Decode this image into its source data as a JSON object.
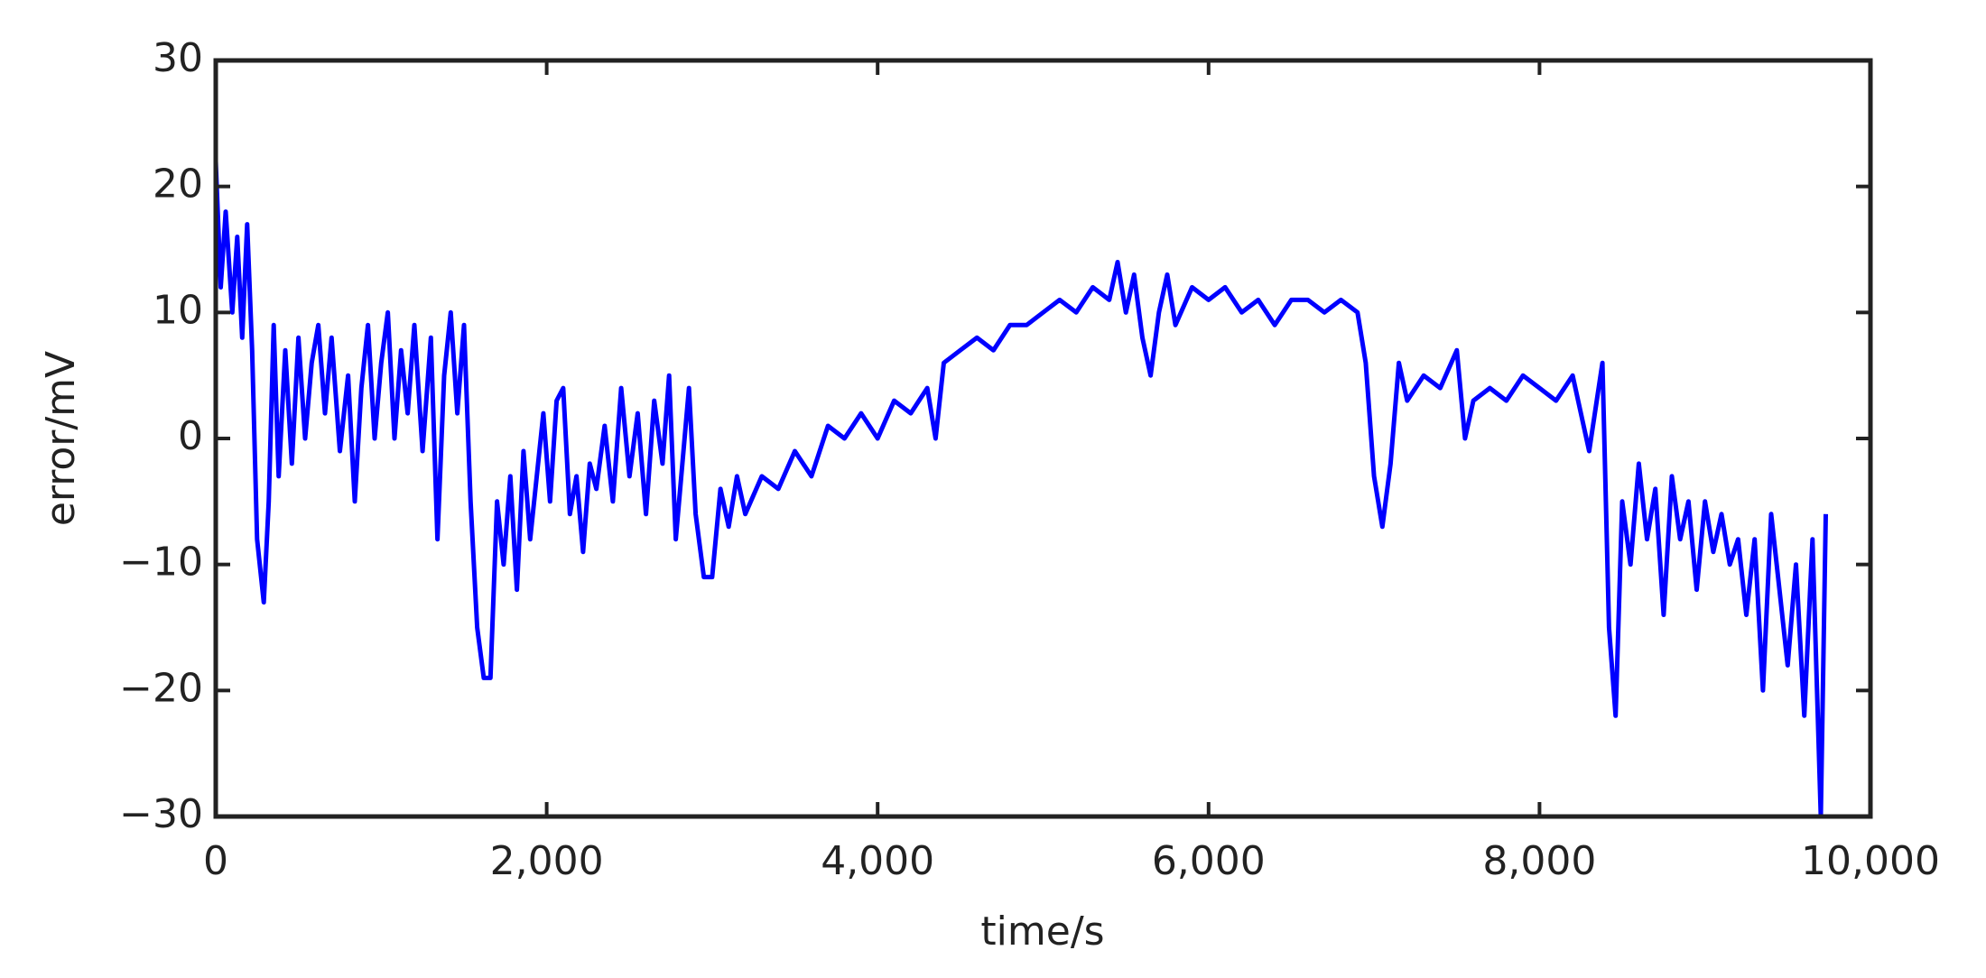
{
  "chart_data": {
    "type": "line",
    "xlabel": "time/s",
    "ylabel": "error/mV",
    "color": "#0000ff",
    "xlim": [
      0,
      10000
    ],
    "xticks": [
      0,
      {
        "value": 2000,
        "label": "2,000"
      },
      {
        "value": 4000,
        "label": "4,000"
      },
      {
        "value": 6000,
        "label": "6,000"
      },
      {
        "value": 8000,
        "label": "8,000"
      },
      {
        "value": 10000,
        "label": "10,000"
      }
    ],
    "ylim": [
      -30,
      30
    ],
    "yticks": [
      {
        "value": -30,
        "label": "−30"
      },
      {
        "value": -20,
        "label": "−20"
      },
      {
        "value": -10,
        "label": "−10"
      },
      0,
      10,
      20,
      30
    ],
    "x": [
      0,
      30,
      60,
      100,
      130,
      160,
      190,
      220,
      250,
      290,
      320,
      350,
      380,
      420,
      460,
      500,
      540,
      580,
      620,
      660,
      700,
      750,
      800,
      840,
      880,
      920,
      960,
      1000,
      1040,
      1080,
      1120,
      1160,
      1200,
      1250,
      1300,
      1340,
      1380,
      1420,
      1460,
      1500,
      1540,
      1580,
      1620,
      1660,
      1700,
      1740,
      1780,
      1820,
      1860,
      1900,
      1940,
      1980,
      2020,
      2060,
      2100,
      2140,
      2180,
      2220,
      2260,
      2300,
      2350,
      2400,
      2450,
      2500,
      2550,
      2600,
      2650,
      2700,
      2740,
      2780,
      2820,
      2860,
      2900,
      2950,
      3000,
      3050,
      3100,
      3150,
      3200,
      3300,
      3400,
      3500,
      3600,
      3700,
      3800,
      3900,
      4000,
      4100,
      4200,
      4300,
      4350,
      4400,
      4500,
      4600,
      4700,
      4800,
      4900,
      5000,
      5100,
      5200,
      5300,
      5400,
      5450,
      5500,
      5550,
      5600,
      5650,
      5700,
      5750,
      5800,
      5900,
      6000,
      6100,
      6200,
      6300,
      6400,
      6500,
      6600,
      6700,
      6800,
      6900,
      6950,
      7000,
      7050,
      7100,
      7150,
      7200,
      7300,
      7400,
      7500,
      7550,
      7600,
      7700,
      7800,
      7900,
      8000,
      8100,
      8200,
      8300,
      8380,
      8420,
      8460,
      8500,
      8550,
      8600,
      8650,
      8700,
      8750,
      8800,
      8850,
      8900,
      8950,
      9000,
      9050,
      9100,
      9150,
      9200,
      9250,
      9300,
      9350,
      9400,
      9450,
      9500,
      9550,
      9600,
      9650,
      9700,
      9730
    ],
    "values": [
      22,
      12,
      18,
      10,
      16,
      8,
      17,
      7,
      -8,
      -13,
      -5,
      9,
      -3,
      7,
      -2,
      8,
      0,
      6,
      9,
      2,
      8,
      -1,
      5,
      -5,
      4,
      9,
      0,
      6,
      10,
      0,
      7,
      2,
      9,
      -1,
      8,
      -8,
      5,
      10,
      2,
      9,
      -5,
      -15,
      -19,
      -19,
      -5,
      -10,
      -3,
      -12,
      -1,
      -8,
      -3,
      2,
      -5,
      3,
      4,
      -6,
      -3,
      -9,
      -2,
      -4,
      1,
      -5,
      4,
      -3,
      2,
      -6,
      3,
      -2,
      5,
      -8,
      -2,
      4,
      -6,
      -11,
      -11,
      -4,
      -7,
      -3,
      -6,
      -3,
      -4,
      -1,
      -3,
      1,
      0,
      2,
      0,
      3,
      2,
      4,
      0,
      6,
      7,
      8,
      7,
      9,
      9,
      10,
      11,
      10,
      12,
      11,
      14,
      10,
      13,
      8,
      5,
      10,
      13,
      9,
      12,
      11,
      12,
      10,
      11,
      9,
      11,
      11,
      10,
      11,
      10,
      6,
      -3,
      -7,
      -2,
      6,
      3,
      5,
      4,
      7,
      0,
      3,
      4,
      3,
      5,
      4,
      3,
      5,
      -1,
      6,
      -15,
      -22,
      -5,
      -10,
      -2,
      -8,
      -4,
      -14,
      -3,
      -8,
      -5,
      -12,
      -5,
      -9,
      -6,
      -10,
      -8,
      -14,
      -8,
      -20,
      -6,
      -12,
      -18,
      -10,
      -22,
      -8,
      -30,
      -6
    ]
  }
}
